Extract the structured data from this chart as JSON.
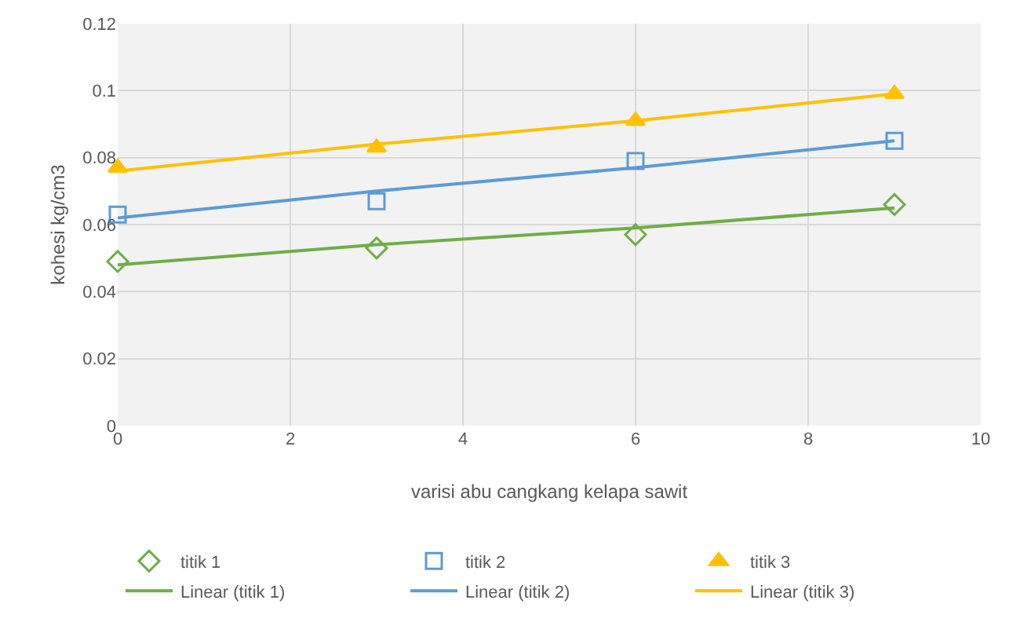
{
  "chart_data": {
    "type": "scatter",
    "xlabel": "varisi abu cangkang kelapa sawit",
    "ylabel": "kohesi kg/cm3",
    "x": [
      0,
      3,
      6,
      9
    ],
    "series": [
      {
        "name": "titik 1",
        "color": "#70ad47",
        "marker": "diamond",
        "values": [
          0.049,
          0.053,
          0.057,
          0.066
        ]
      },
      {
        "name": "titik 2",
        "color": "#5b9bd5",
        "marker": "square",
        "values": [
          0.063,
          0.067,
          0.079,
          0.085
        ]
      },
      {
        "name": "titik 3",
        "color": "#ffc000",
        "marker": "triangle",
        "values": [
          0.077,
          0.083,
          0.091,
          0.099
        ]
      },
      {
        "name": "Linear (titik 1)",
        "type": "line",
        "color": "#70ad47",
        "marker": "none",
        "values": [
          0.048,
          0.054,
          0.059,
          0.065
        ]
      },
      {
        "name": "Linear (titik 2)",
        "type": "line",
        "color": "#5b9bd5",
        "marker": "none",
        "values": [
          0.062,
          0.07,
          0.077,
          0.085
        ]
      },
      {
        "name": "Linear (titik 3)",
        "type": "line",
        "color": "#ffc000",
        "marker": "none",
        "values": [
          0.076,
          0.084,
          0.091,
          0.099
        ]
      }
    ],
    "xlim": [
      0,
      10
    ],
    "xticks": [
      0,
      2,
      4,
      6,
      8,
      10
    ],
    "ylim": [
      0,
      0.12
    ],
    "yticks": [
      0,
      0.02,
      0.04,
      0.06,
      0.08,
      0.1,
      0.12
    ],
    "grid": true,
    "legend": "bottom"
  }
}
